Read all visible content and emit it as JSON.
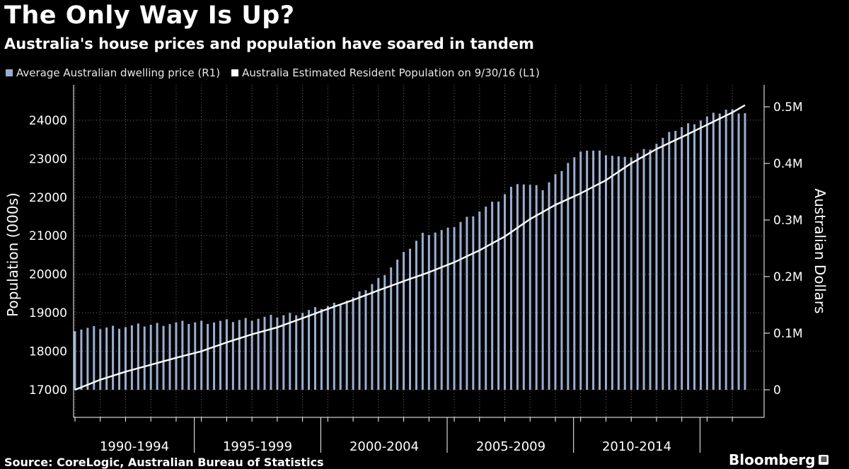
{
  "header": {
    "title": "The Only Way Is Up?",
    "subtitle": "Australia's house prices and population have soared in tandem"
  },
  "legend": [
    {
      "label": "Average Australian dwelling price (R1)",
      "color": "#9aaed0"
    },
    {
      "label": "Australia Estimated Resident Population  on 9/30/16 (L1)",
      "color": "#ffffff"
    }
  ],
  "footer": {
    "source": "Source: CoreLogic, Australian Bureau of Statistics",
    "brand": "Bloomberg"
  },
  "colors": {
    "background": "#000000",
    "bars": "#9aaed0",
    "line": "#ffffff",
    "grid": "#6a6a6a"
  },
  "chart_data": {
    "type": "bar",
    "title": "The Only Way Is Up?",
    "subtitle": "Australia's house prices and population have soared in tandem",
    "ylabel": "Population (000s)",
    "y2label": "Australian Dollars",
    "ylim": [
      17000,
      24600
    ],
    "y2lim": [
      0,
      0.5
    ],
    "yticks": [
      "17000",
      "18000",
      "19000",
      "20000",
      "21000",
      "22000",
      "23000",
      "24000"
    ],
    "y2ticks": [
      "0",
      "0.1M",
      "0.2M",
      "0.3M",
      "0.4M",
      "0.5M"
    ],
    "xticks": [
      "1990-1994",
      "1995-1999",
      "2000-2004",
      "2005-2009",
      "2010-2014"
    ],
    "x_period_start": "1990-Q1",
    "x_period_end": "2016-Q3",
    "grid": true,
    "legend_position": "top-left",
    "series": [
      {
        "name": "Average Australian dwelling price (R1)",
        "axis": "right",
        "style": "bar",
        "anchors": [
          {
            "period": "1990-Q1",
            "value": 0.107
          },
          {
            "period": "1992-Q1",
            "value": 0.112
          },
          {
            "period": "1994-Q1",
            "value": 0.118
          },
          {
            "period": "1996-Q1",
            "value": 0.121
          },
          {
            "period": "1998-Q1",
            "value": 0.13
          },
          {
            "period": "1999-Q1",
            "value": 0.137
          },
          {
            "period": "2000-Q1",
            "value": 0.148
          },
          {
            "period": "2001-Q1",
            "value": 0.162
          },
          {
            "period": "2002-Q1",
            "value": 0.195
          },
          {
            "period": "2003-Q1",
            "value": 0.24
          },
          {
            "period": "2003-Q4",
            "value": 0.275
          },
          {
            "period": "2004-Q4",
            "value": 0.283
          },
          {
            "period": "2005-Q4",
            "value": 0.31
          },
          {
            "period": "2006-Q4",
            "value": 0.335
          },
          {
            "period": "2007-Q3",
            "value": 0.367
          },
          {
            "period": "2008-Q3",
            "value": 0.355
          },
          {
            "period": "2009-Q3",
            "value": 0.402
          },
          {
            "period": "2010-Q2",
            "value": 0.425
          },
          {
            "period": "2011-Q1",
            "value": 0.418
          },
          {
            "period": "2011-Q4",
            "value": 0.408
          },
          {
            "period": "2012-Q4",
            "value": 0.428
          },
          {
            "period": "2013-Q4",
            "value": 0.46
          },
          {
            "period": "2014-Q4",
            "value": 0.477
          },
          {
            "period": "2015-Q4",
            "value": 0.495
          },
          {
            "period": "2016-Q3",
            "value": 0.49
          }
        ]
      },
      {
        "name": "Australia Estimated Resident Population  on 9/30/16 (L1)",
        "axis": "left",
        "style": "line",
        "anchors": [
          {
            "period": "1990-Q1",
            "value": 17000
          },
          {
            "period": "1991-Q1",
            "value": 17260
          },
          {
            "period": "1992-Q1",
            "value": 17470
          },
          {
            "period": "1993-Q1",
            "value": 17650
          },
          {
            "period": "1994-Q1",
            "value": 17830
          },
          {
            "period": "1995-Q1",
            "value": 18000
          },
          {
            "period": "1996-Q1",
            "value": 18230
          },
          {
            "period": "1997-Q1",
            "value": 18440
          },
          {
            "period": "1998-Q1",
            "value": 18620
          },
          {
            "period": "1999-Q1",
            "value": 18860
          },
          {
            "period": "2000-Q1",
            "value": 19100
          },
          {
            "period": "2001-Q1",
            "value": 19330
          },
          {
            "period": "2002-Q1",
            "value": 19580
          },
          {
            "period": "2003-Q1",
            "value": 19820
          },
          {
            "period": "2004-Q1",
            "value": 20050
          },
          {
            "period": "2005-Q1",
            "value": 20310
          },
          {
            "period": "2006-Q1",
            "value": 20620
          },
          {
            "period": "2007-Q1",
            "value": 20980
          },
          {
            "period": "2008-Q1",
            "value": 21430
          },
          {
            "period": "2009-Q1",
            "value": 21800
          },
          {
            "period": "2010-Q1",
            "value": 22100
          },
          {
            "period": "2011-Q1",
            "value": 22440
          },
          {
            "period": "2012-Q1",
            "value": 22880
          },
          {
            "period": "2013-Q1",
            "value": 23250
          },
          {
            "period": "2014-Q1",
            "value": 23560
          },
          {
            "period": "2015-Q1",
            "value": 23880
          },
          {
            "period": "2016-Q1",
            "value": 24200
          },
          {
            "period": "2016-Q3",
            "value": 24390
          }
        ]
      }
    ]
  }
}
